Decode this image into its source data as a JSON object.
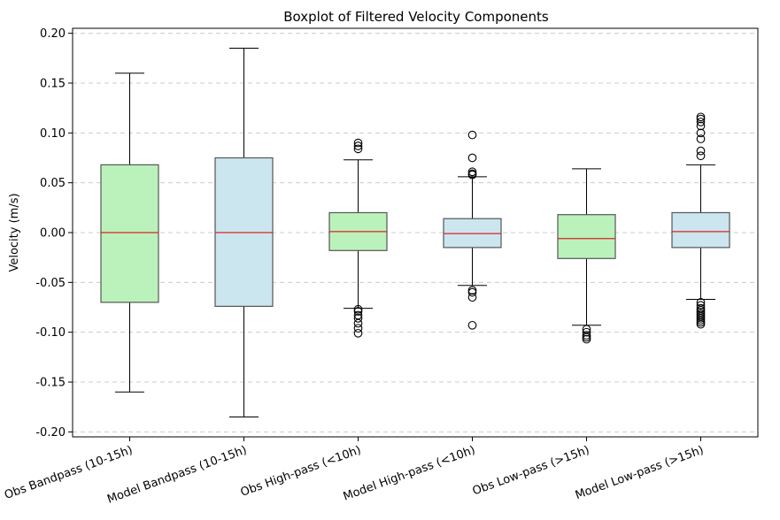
{
  "chart_data": {
    "type": "box",
    "title": "Boxplot of Filtered Velocity Components",
    "xlabel": "",
    "ylabel": "Velocity (m/s)",
    "ylim": [
      -0.205,
      0.205
    ],
    "yticks": [
      "-0.20",
      "-0.15",
      "-0.10",
      "-0.05",
      "0.00",
      "0.05",
      "0.10",
      "0.15",
      "0.20"
    ],
    "grid": "y-dashed",
    "colors": {
      "green_box": "#bbf2bb",
      "blue_box": "#cce6f0",
      "median": "#dd2222",
      "grid": "#cccccc"
    },
    "boxes": [
      {
        "label": "Obs Bandpass (10-15h)",
        "fill": "green",
        "whisker_low": -0.16,
        "q1": -0.07,
        "median": 0.0,
        "q3": 0.068,
        "whisker_high": 0.16,
        "outliers": []
      },
      {
        "label": "Model Bandpass (10-15h)",
        "fill": "blue",
        "whisker_low": -0.185,
        "q1": -0.074,
        "median": 0.0,
        "q3": 0.075,
        "whisker_high": 0.185,
        "outliers": []
      },
      {
        "label": "Obs High-pass (<10h)",
        "fill": "green",
        "whisker_low": -0.076,
        "q1": -0.018,
        "median": 0.001,
        "q3": 0.02,
        "whisker_high": 0.073,
        "outliers": [
          0.09,
          0.087,
          0.084,
          -0.077,
          -0.079,
          -0.083,
          -0.086,
          -0.091,
          -0.096,
          -0.101
        ]
      },
      {
        "label": "Model High-pass (<10h)",
        "fill": "blue",
        "whisker_low": -0.053,
        "q1": -0.015,
        "median": -0.001,
        "q3": 0.014,
        "whisker_high": 0.056,
        "outliers": [
          0.098,
          0.075,
          0.061,
          0.059,
          0.058,
          -0.058,
          -0.06,
          -0.065,
          -0.093
        ]
      },
      {
        "label": "Obs Low-pass (>15h)",
        "fill": "green",
        "whisker_low": -0.093,
        "q1": -0.026,
        "median": -0.006,
        "q3": 0.018,
        "whisker_high": 0.064,
        "outliers": [
          -0.097,
          -0.1,
          -0.103,
          -0.105,
          -0.107
        ]
      },
      {
        "label": "Model Low-pass (>15h)",
        "fill": "blue",
        "whisker_low": -0.067,
        "q1": -0.015,
        "median": 0.001,
        "q3": 0.02,
        "whisker_high": 0.068,
        "outliers": [
          0.116,
          0.114,
          0.111,
          0.107,
          0.1,
          0.094,
          0.082,
          0.077,
          -0.07,
          -0.073,
          -0.076,
          -0.078,
          -0.08,
          -0.082,
          -0.084,
          -0.086,
          -0.088,
          -0.09,
          -0.092
        ]
      }
    ]
  }
}
